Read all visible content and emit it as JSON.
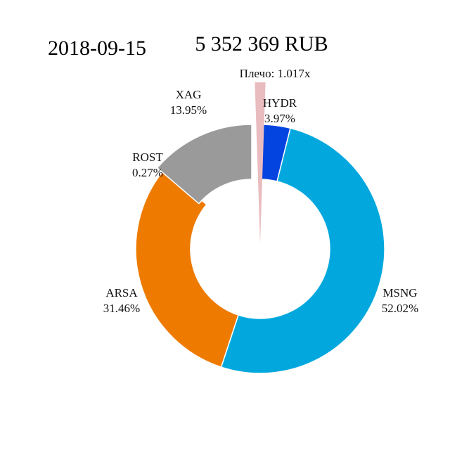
{
  "header": {
    "date": "2018-09-15",
    "total": "5 352 369 RUB"
  },
  "chart_data": {
    "type": "pie",
    "donut": true,
    "leverage_label": "Плечо: 1.017x",
    "leverage": 1.017,
    "leverage_color": "#e9bcbf",
    "slices": [
      {
        "name": "HYDR",
        "pct_label": "3.97%",
        "value": 3.97,
        "color": "#0343df"
      },
      {
        "name": "MSNG",
        "pct_label": "52.02%",
        "value": 52.02,
        "color": "#02a8dd"
      },
      {
        "name": "ARSA",
        "pct_label": "31.46%",
        "value": 31.46,
        "color": "#ee7a00"
      },
      {
        "name": "ROST",
        "pct_label": "0.27%",
        "value": 0.27,
        "color": "#ee7a00"
      },
      {
        "name": "XAG",
        "pct_label": "13.95%",
        "value": 13.95,
        "color": "#9a9a9a"
      }
    ]
  }
}
